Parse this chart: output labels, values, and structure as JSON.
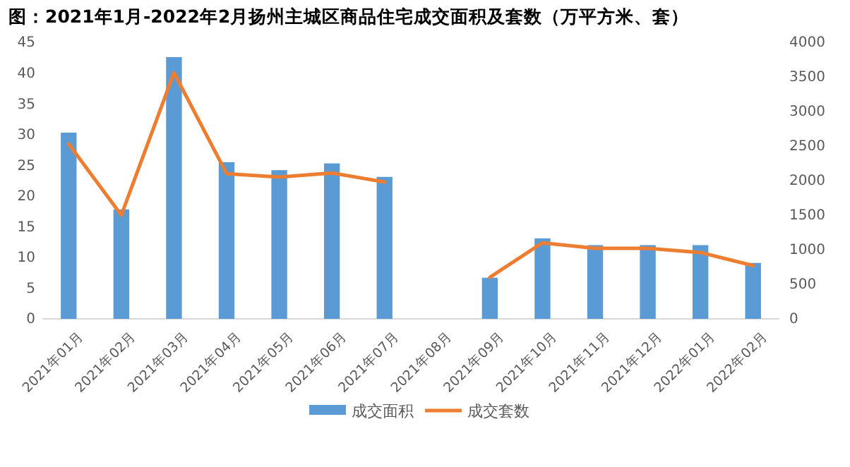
{
  "chart_data": {
    "type": "bar",
    "title": "图：2021年1月-2022年2月扬州主城区商品住宅成交面积及套数（万平方米、套）",
    "categories": [
      "2021年01月",
      "2021年02月",
      "2021年03月",
      "2021年04月",
      "2021年05月",
      "2021年06月",
      "2021年07月",
      "2021年08月",
      "2021年09月",
      "2021年10月",
      "2021年11月",
      "2021年12月",
      "2022年01月",
      "2022年02月"
    ],
    "series": [
      {
        "name": "成交面积",
        "color": "#5b9bd5",
        "values": [
          30.3,
          17.8,
          42.6,
          25.5,
          24.2,
          25.3,
          23.1,
          null,
          6.7,
          13.1,
          12.0,
          12.0,
          12.0,
          9.1
        ]
      },
      {
        "name": "成交套数",
        "type": "line",
        "axis": "y2",
        "color": "#ed7d31",
        "values": [
          2530,
          1500,
          3560,
          2100,
          2050,
          2110,
          1980,
          null,
          600,
          1100,
          1020,
          1020,
          960,
          770
        ]
      }
    ],
    "ylim": [
      0,
      45
    ],
    "yticks": [
      0,
      5,
      10,
      15,
      20,
      25,
      30,
      35,
      40,
      45
    ],
    "y2lim": [
      0,
      4000
    ],
    "y2ticks": [
      0,
      500,
      1000,
      1500,
      2000,
      2500,
      3000,
      3500,
      4000
    ],
    "legend": "bottom",
    "grid": false,
    "marker": "none",
    "line_style": "solid"
  }
}
